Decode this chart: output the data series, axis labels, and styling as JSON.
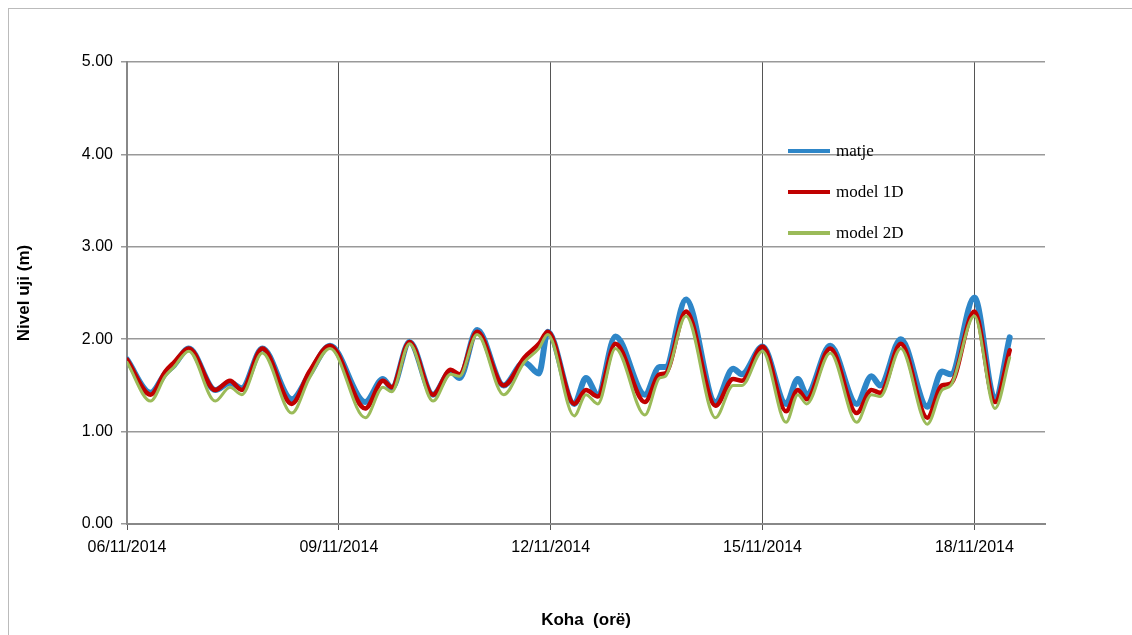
{
  "chart_data": {
    "type": "line",
    "xlabel": "Koha  (orë)",
    "ylabel": "Nivel uji (m)",
    "x": [
      "2014-11-06T00:00",
      "2014-11-06T08:00",
      "2014-11-06T13:00",
      "2014-11-06T16:00",
      "2014-11-06T21:00",
      "2014-11-07T06:00",
      "2014-11-07T11:00",
      "2014-11-07T15:00",
      "2014-11-07T22:00",
      "2014-11-08T08:00",
      "2014-11-08T14:00",
      "2014-11-08T21:00",
      "2014-11-09T09:00",
      "2014-11-09T15:00",
      "2014-11-09T18:00",
      "2014-11-10T00:00",
      "2014-11-10T08:00",
      "2014-11-10T14:00",
      "2014-11-10T17:00",
      "2014-11-10T23:00",
      "2014-11-11T08:00",
      "2014-11-11T15:00",
      "2014-11-11T20:00",
      "2014-11-11T23:00",
      "2014-11-12T08:00",
      "2014-11-12T12:00",
      "2014-11-12T16:00",
      "2014-11-12T22:00",
      "2014-11-13T08:00",
      "2014-11-13T13:00",
      "2014-11-13T15:00",
      "2014-11-13T22:00",
      "2014-11-14T08:00",
      "2014-11-14T14:00",
      "2014-11-14T17:00",
      "2014-11-15T00:00",
      "2014-11-15T08:00",
      "2014-11-15T12:00",
      "2014-11-15T15:00",
      "2014-11-15T23:00",
      "2014-11-16T08:00",
      "2014-11-16T13:00",
      "2014-11-16T16:00",
      "2014-11-16T23:00",
      "2014-11-17T08:00",
      "2014-11-17T13:00",
      "2014-11-17T16:00",
      "2014-11-18T00:00",
      "2014-11-18T07:00",
      "2014-11-18T12:00"
    ],
    "series": [
      {
        "name": "matje",
        "color": "#2e86c8",
        "values": [
          1.78,
          1.42,
          1.63,
          1.72,
          1.9,
          1.45,
          1.53,
          1.47,
          1.9,
          1.35,
          1.62,
          1.93,
          1.32,
          1.57,
          1.47,
          1.97,
          1.4,
          1.65,
          1.58,
          2.1,
          1.5,
          1.75,
          1.63,
          2.08,
          1.3,
          1.58,
          1.4,
          2.03,
          1.4,
          1.7,
          1.7,
          2.43,
          1.32,
          1.68,
          1.62,
          1.92,
          1.3,
          1.57,
          1.4,
          1.93,
          1.3,
          1.6,
          1.5,
          2.0,
          1.27,
          1.65,
          1.62,
          2.45,
          1.35,
          2.02
        ]
      },
      {
        "name": "model 1D",
        "color": "#c00000",
        "values": [
          1.78,
          1.4,
          1.65,
          1.75,
          1.9,
          1.45,
          1.55,
          1.45,
          1.9,
          1.3,
          1.65,
          1.93,
          1.25,
          1.55,
          1.48,
          1.97,
          1.4,
          1.67,
          1.62,
          2.08,
          1.5,
          1.8,
          1.95,
          2.08,
          1.3,
          1.45,
          1.38,
          1.95,
          1.32,
          1.62,
          1.63,
          2.3,
          1.28,
          1.57,
          1.55,
          1.92,
          1.22,
          1.45,
          1.35,
          1.9,
          1.2,
          1.45,
          1.42,
          1.95,
          1.15,
          1.5,
          1.52,
          2.3,
          1.32,
          1.88
        ]
      },
      {
        "name": "model 2D",
        "color": "#9bbb59",
        "values": [
          1.75,
          1.33,
          1.6,
          1.7,
          1.87,
          1.33,
          1.48,
          1.4,
          1.85,
          1.2,
          1.58,
          1.9,
          1.15,
          1.48,
          1.43,
          1.95,
          1.33,
          1.62,
          1.6,
          2.05,
          1.4,
          1.75,
          1.9,
          2.05,
          1.17,
          1.4,
          1.3,
          1.9,
          1.18,
          1.58,
          1.6,
          2.25,
          1.15,
          1.5,
          1.5,
          1.87,
          1.1,
          1.4,
          1.3,
          1.85,
          1.1,
          1.4,
          1.38,
          1.9,
          1.08,
          1.45,
          1.5,
          2.25,
          1.25,
          1.8
        ]
      }
    ],
    "xlim": [
      "2014-11-06",
      "2014-11-19"
    ],
    "xticks": [
      {
        "value": "2014-11-06",
        "label": "06/11/2014"
      },
      {
        "value": "2014-11-09",
        "label": "09/11/2014"
      },
      {
        "value": "2014-11-12",
        "label": "12/11/2014"
      },
      {
        "value": "2014-11-15",
        "label": "15/11/2014"
      },
      {
        "value": "2014-11-18",
        "label": "18/11/2014"
      }
    ],
    "ylim": [
      0,
      5
    ],
    "yticks": [
      {
        "value": 0,
        "label": "0.00"
      },
      {
        "value": 1,
        "label": "1.00"
      },
      {
        "value": 2,
        "label": "2.00"
      },
      {
        "value": 3,
        "label": "3.00"
      },
      {
        "value": 4,
        "label": "4.00"
      },
      {
        "value": 5,
        "label": "5.00"
      }
    ],
    "grid": true,
    "legend": "top right",
    "marker": "none",
    "line_style": "solid"
  }
}
